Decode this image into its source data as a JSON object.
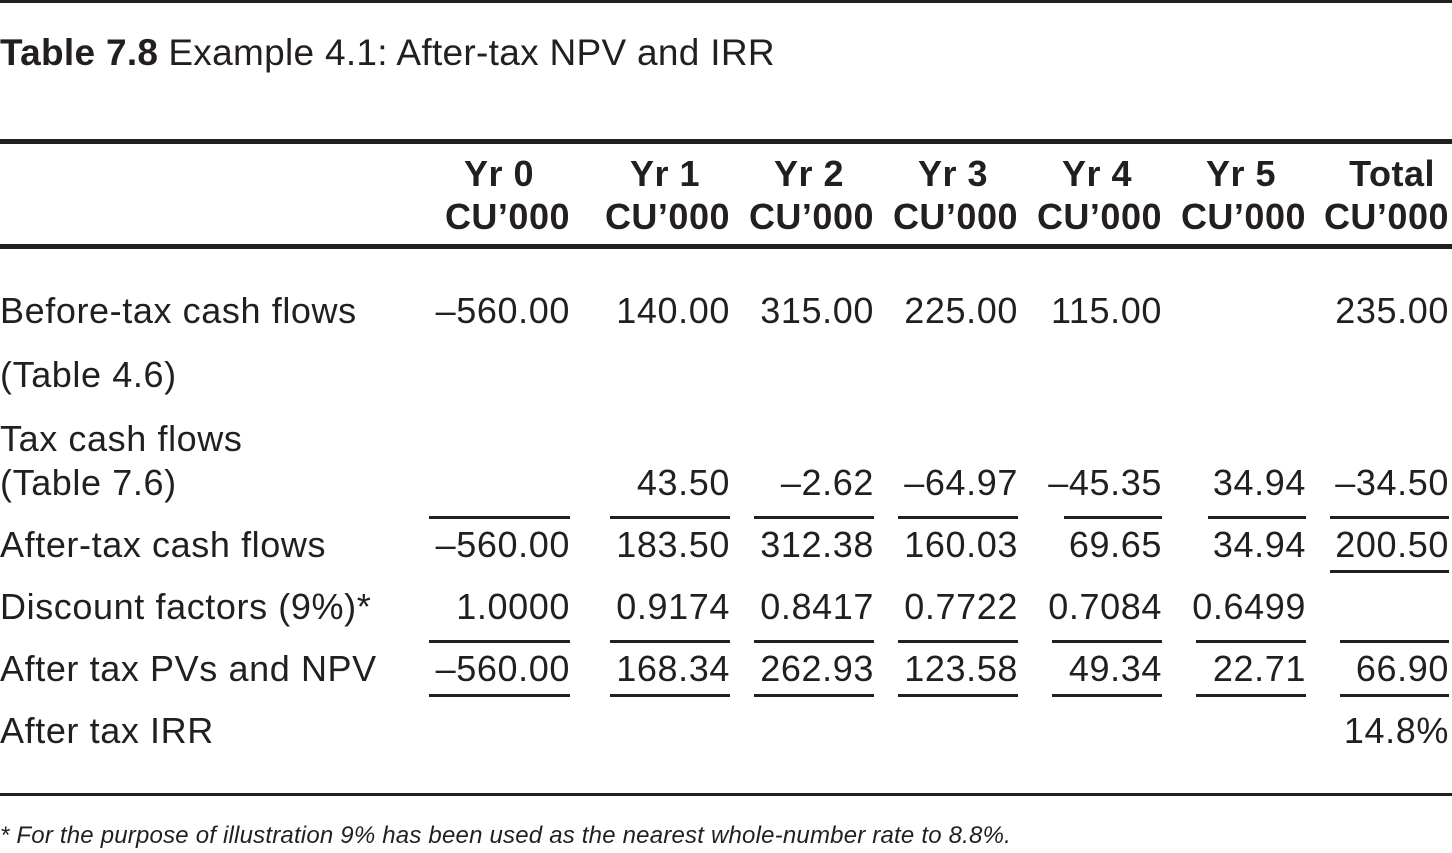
{
  "caption": {
    "number": "Table 7.8",
    "title": "Example 4.1: After-tax NPV and IRR"
  },
  "columns": [
    {
      "label": "Yr 0",
      "unit": "CU’000"
    },
    {
      "label": "Yr 1",
      "unit": "CU’000"
    },
    {
      "label": "Yr 2",
      "unit": "CU’000"
    },
    {
      "label": "Yr 3",
      "unit": "CU’000"
    },
    {
      "label": "Yr 4",
      "unit": "CU’000"
    },
    {
      "label": "Yr 5",
      "unit": "CU’000"
    },
    {
      "label": "Total",
      "unit": "CU’000"
    }
  ],
  "rows": [
    {
      "label": "Before-tax cash flows",
      "label2": "(Table 4.6)",
      "values": [
        "–560.00",
        "140.00",
        "315.00",
        "225.00",
        "115.00",
        "",
        "235.00"
      ]
    },
    {
      "label": "Tax cash flows",
      "label2": "(Table 7.6)",
      "values": [
        "",
        "43.50",
        "–2.62",
        "–64.97",
        "–45.35",
        "34.94",
        "–34.50"
      ]
    },
    {
      "label": "After-tax cash flows",
      "values": [
        "–560.00",
        "183.50",
        "312.38",
        "160.03",
        "69.65",
        "34.94",
        "200.50"
      ]
    },
    {
      "label": "Discount factors (9%)*",
      "values": [
        "1.0000",
        "0.9174",
        "0.8417",
        "0.7722",
        "0.7084",
        "0.6499",
        ""
      ]
    },
    {
      "label": "After tax PVs and NPV",
      "values": [
        "–560.00",
        "168.34",
        "262.93",
        "123.58",
        "49.34",
        "22.71",
        "66.90"
      ]
    },
    {
      "label": "After tax IRR",
      "values": [
        "",
        "",
        "",
        "",
        "",
        "",
        "14.8%"
      ]
    }
  ],
  "footnote": "* For the purpose of illustration 9% has been used as the nearest whole-number rate to 8.8%."
}
